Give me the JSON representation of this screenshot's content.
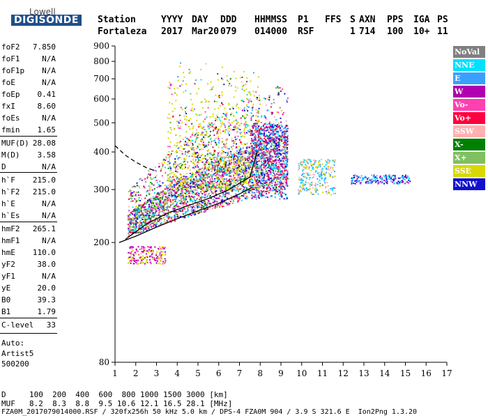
{
  "logo": {
    "brand": "Lowell",
    "name": "DIGISONDE"
  },
  "header": {
    "labels": [
      "Station",
      "YYYY",
      "DAY",
      "DDD",
      "HHMMSS",
      "P1",
      "FFS",
      "S",
      "AXN",
      "PPS",
      "IGA",
      "PS"
    ],
    "values": [
      "Fortaleza",
      "2017",
      "Mar20",
      "079",
      "014000",
      "RSF",
      "",
      "1",
      "714",
      "100",
      "10+",
      "11"
    ]
  },
  "params": [
    {
      "k": "foF2",
      "v": "7.850"
    },
    {
      "k": "foF1",
      "v": "N/A"
    },
    {
      "k": "foF1p",
      "v": "N/A"
    },
    {
      "k": "foE",
      "v": "N/A"
    },
    {
      "k": "foEp",
      "v": "0.41"
    },
    {
      "k": "fxI",
      "v": "8.60"
    },
    {
      "k": "foEs",
      "v": "N/A"
    },
    {
      "k": "fmin",
      "v": "1.65"
    },
    {
      "k": "MUF(D)",
      "v": "28.08"
    },
    {
      "k": "M(D)",
      "v": "3.58"
    },
    {
      "k": "D",
      "v": "N/A"
    },
    {
      "k": "h`F",
      "v": "215.0"
    },
    {
      "k": "h`F2",
      "v": "215.0"
    },
    {
      "k": "h`E",
      "v": "N/A"
    },
    {
      "k": "h`Es",
      "v": "N/A"
    },
    {
      "k": "hmF2",
      "v": "265.1"
    },
    {
      "k": "hmF1",
      "v": "N/A"
    },
    {
      "k": "hmE",
      "v": "110.0"
    },
    {
      "k": "yF2",
      "v": "38.0"
    },
    {
      "k": "yF1",
      "v": "N/A"
    },
    {
      "k": "yE",
      "v": "20.0"
    },
    {
      "k": "B0",
      "v": "39.3"
    },
    {
      "k": "B1",
      "v": "1.79"
    },
    {
      "k": "C-level",
      "v": "33"
    }
  ],
  "auto": {
    "label": "Auto:",
    "artist": "Artist5",
    "version": "500200"
  },
  "legend": [
    {
      "label": "NoVal",
      "color": "#808080"
    },
    {
      "label": "NNE",
      "color": "#00e0ff"
    },
    {
      "label": "E",
      "color": "#3aa0ff"
    },
    {
      "label": "W",
      "color": "#b000b0"
    },
    {
      "label": "Vo-",
      "color": "#ff40b0"
    },
    {
      "label": "Vo+",
      "color": "#ff0040"
    },
    {
      "label": "SSW",
      "color": "#ffb0b0"
    },
    {
      "label": "X-",
      "color": "#008000"
    },
    {
      "label": "X+",
      "color": "#80c060"
    },
    {
      "label": "SSE",
      "color": "#d8d800"
    },
    {
      "label": "NNW",
      "color": "#1010d0"
    }
  ],
  "chart_data": {
    "type": "scatter",
    "xlabel": "",
    "ylabel": "",
    "xlim": [
      1,
      17
    ],
    "ylim": [
      80,
      900
    ],
    "x_ticks": [
      1,
      2,
      3,
      4,
      5,
      6,
      7,
      8,
      9,
      10,
      11,
      12,
      13,
      14,
      15,
      16,
      17
    ],
    "y_ticks": [
      80,
      200,
      300,
      400,
      500,
      600,
      700,
      800,
      900
    ],
    "y_scale": "log",
    "grid": false,
    "trace_curve": {
      "x": [
        1.2,
        2,
        3,
        4,
        5,
        6,
        7,
        7.6
      ],
      "y": [
        200,
        210,
        225,
        240,
        255,
        270,
        290,
        305
      ]
    },
    "profile_curve": {
      "x": [
        1.5,
        2.5,
        3.5,
        4.5,
        5.5,
        6.5,
        7.5,
        7.85
      ],
      "y": [
        205,
        230,
        250,
        265,
        280,
        300,
        330,
        400
      ]
    },
    "dashed_curve": {
      "x": [
        1,
        1.5,
        2,
        2.5,
        3
      ],
      "y": [
        420,
        390,
        370,
        355,
        345
      ]
    }
  },
  "footer": {
    "d_label": "D",
    "d_values": "100  200  400  600  800 1000 1500 3000 [km]",
    "muf_label": "MUF",
    "muf_values": "8.2  8.3  8.8  9.5 10.6 12.1 16.5 28.1 [MHz]",
    "info": "FZA0M_2017079014000.RSF / 320fx256h 50 kHz 5.0 km / DPS-4 FZA0M 904 / 3.9 S 321.6 E  Ion2Png 1.3.20"
  }
}
